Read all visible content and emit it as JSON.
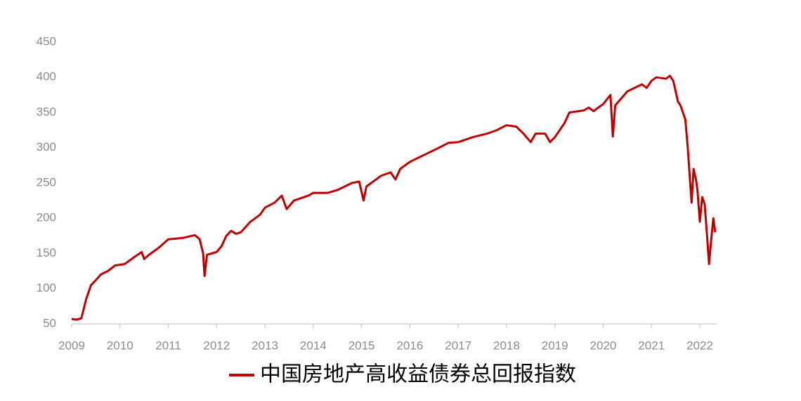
{
  "chart_data": {
    "type": "line",
    "x": [
      2009.0,
      2009.1,
      2009.2,
      2009.3,
      2009.4,
      2009.5,
      2009.6,
      2009.75,
      2009.9,
      2010.1,
      2010.3,
      2010.45,
      2010.5,
      2010.6,
      2010.8,
      2011.0,
      2011.3,
      2011.55,
      2011.65,
      2011.72,
      2011.75,
      2011.8,
      2012.0,
      2012.1,
      2012.2,
      2012.3,
      2012.4,
      2012.5,
      2012.7,
      2012.9,
      2013.0,
      2013.2,
      2013.35,
      2013.45,
      2013.6,
      2013.9,
      2014.0,
      2014.3,
      2014.5,
      2014.8,
      2014.95,
      2015.04,
      2015.1,
      2015.4,
      2015.6,
      2015.7,
      2015.8,
      2016.0,
      2016.3,
      2016.6,
      2016.8,
      2017.0,
      2017.3,
      2017.6,
      2017.8,
      2018.0,
      2018.2,
      2018.35,
      2018.5,
      2018.6,
      2018.8,
      2018.9,
      2019.0,
      2019.2,
      2019.3,
      2019.6,
      2019.7,
      2019.8,
      2020.0,
      2020.15,
      2020.2,
      2020.25,
      2020.5,
      2020.8,
      2020.9,
      2021.0,
      2021.1,
      2021.3,
      2021.38,
      2021.45,
      2021.55,
      2021.6,
      2021.7,
      2021.75,
      2021.79,
      2021.83,
      2021.87,
      2021.92,
      2021.95,
      2022.0,
      2022.05,
      2022.1,
      2022.15,
      2022.19,
      2022.25,
      2022.28,
      2022.32
    ],
    "series": [
      {
        "name": "中国房地产高收益债券总回报指数",
        "color": "#c00000",
        "values": [
          57,
          56,
          58,
          85,
          105,
          112,
          120,
          125,
          133,
          135,
          145,
          152,
          142,
          148,
          158,
          170,
          172,
          176,
          170,
          150,
          118,
          148,
          152,
          160,
          175,
          182,
          178,
          180,
          195,
          205,
          215,
          222,
          232,
          213,
          225,
          232,
          236,
          236,
          240,
          250,
          252,
          225,
          245,
          260,
          265,
          255,
          270,
          280,
          290,
          300,
          307,
          308,
          315,
          320,
          325,
          332,
          330,
          320,
          308,
          320,
          320,
          308,
          315,
          335,
          350,
          353,
          357,
          352,
          362,
          375,
          316,
          360,
          380,
          390,
          385,
          395,
          400,
          398,
          402,
          395,
          365,
          360,
          340,
          300,
          260,
          222,
          270,
          255,
          240,
          195,
          230,
          220,
          175,
          135,
          180,
          200,
          180
        ]
      }
    ],
    "xlim": [
      2009,
      2022.32
    ],
    "xticks": [
      2009,
      2010,
      2011,
      2012,
      2013,
      2014,
      2015,
      2016,
      2017,
      2018,
      2019,
      2020,
      2021,
      2022
    ],
    "ylim": [
      50,
      450
    ],
    "yticks": [
      50,
      100,
      150,
      200,
      250,
      300,
      350,
      400,
      450
    ],
    "grid": false
  }
}
